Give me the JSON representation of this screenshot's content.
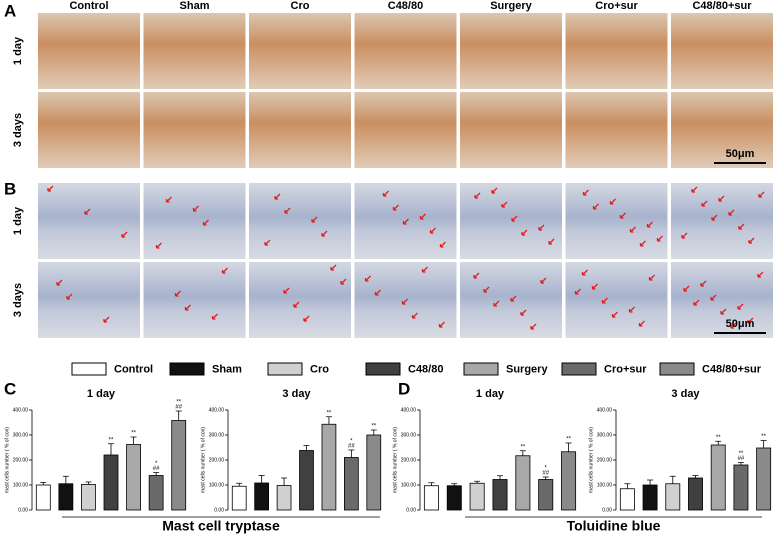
{
  "panels": [
    "A",
    "B",
    "C",
    "D"
  ],
  "columns": [
    "Control",
    "Sham",
    "Cro",
    "C48/80",
    "Surgery",
    "Cro+sur",
    "C48/80+sur"
  ],
  "rows": [
    "1 day",
    "3 days"
  ],
  "scale_bar": "50μm",
  "legend": [
    {
      "name": "Control",
      "color": "#ffffff"
    },
    {
      "name": "Sham",
      "color": "#111111"
    },
    {
      "name": "Cro",
      "color": "#d0d0d0"
    },
    {
      "name": "C48/80",
      "color": "#404040"
    },
    {
      "name": "Surgery",
      "color": "#a8a8a8"
    },
    {
      "name": "Cro+sur",
      "color": "#6a6a6a"
    },
    {
      "name": "C48/80+sur",
      "color": "#8a8a8a"
    }
  ],
  "captions": [
    "Mast cell tryptase",
    "Toluidine blue"
  ],
  "chart_data": [
    {
      "type": "bar",
      "title": "1 day",
      "ylabel": "mast cells number ( % of con)",
      "values": [
        100,
        105,
        102,
        220,
        262,
        138,
        358
      ],
      "errors": [
        10,
        30,
        10,
        45,
        30,
        12,
        38
      ],
      "annotations": [
        [],
        [],
        [],
        [
          "**"
        ],
        [
          "**"
        ],
        [
          "*",
          "##"
        ],
        [
          "**",
          "##"
        ]
      ],
      "ylim": [
        0,
        400
      ],
      "yticks": [
        {
          "value": 0,
          "label": "0.00"
        },
        {
          "value": 100,
          "label": "100.00"
        },
        {
          "value": 200,
          "label": "200.00"
        },
        {
          "value": 300,
          "label": "300.00"
        },
        {
          "value": 400,
          "label": "400.00"
        }
      ]
    },
    {
      "type": "bar",
      "title": "3 day",
      "ylabel": "mast cells number ( % of con)",
      "values": [
        95,
        108,
        98,
        238,
        343,
        210,
        300
      ],
      "errors": [
        12,
        30,
        30,
        20,
        30,
        30,
        20
      ],
      "annotations": [
        [],
        [],
        [],
        [],
        [
          "**"
        ],
        [
          "*",
          "##"
        ],
        [
          "**"
        ]
      ],
      "ylim": [
        0,
        400
      ],
      "yticks": [
        {
          "value": 0,
          "label": "0.00"
        },
        {
          "value": 100,
          "label": "100.00"
        },
        {
          "value": 200,
          "label": "200.00"
        },
        {
          "value": 300,
          "label": "300.00"
        },
        {
          "value": 400,
          "label": "400.00"
        }
      ]
    },
    {
      "type": "bar",
      "title": "1 day",
      "ylabel": "mast cells number ( % of con)",
      "values": [
        97,
        97,
        107,
        122,
        217,
        122,
        233
      ],
      "errors": [
        12,
        8,
        8,
        15,
        20,
        10,
        35
      ],
      "annotations": [
        [],
        [],
        [],
        [],
        [
          "**"
        ],
        [
          "*",
          "##"
        ],
        [
          "**"
        ]
      ],
      "ylim": [
        0,
        400
      ],
      "yticks": [
        {
          "value": 0,
          "label": "0.00"
        },
        {
          "value": 100,
          "label": "100.00"
        },
        {
          "value": 200,
          "label": "200.00"
        },
        {
          "value": 300,
          "label": "300.00"
        },
        {
          "value": 400,
          "label": "400.00"
        }
      ]
    },
    {
      "type": "bar",
      "title": "3 day",
      "ylabel": "mast cells number ( % of con)",
      "values": [
        85,
        100,
        105,
        128,
        260,
        180,
        248
      ],
      "errors": [
        20,
        20,
        30,
        10,
        15,
        10,
        30
      ],
      "annotations": [
        [],
        [],
        [],
        [],
        [
          "**"
        ],
        [
          "**",
          "##"
        ],
        [
          "**"
        ]
      ],
      "ylim": [
        0,
        400
      ],
      "yticks": [
        {
          "value": 0,
          "label": "0.00"
        },
        {
          "value": 100,
          "label": "100.00"
        },
        {
          "value": 200,
          "label": "200.00"
        },
        {
          "value": 300,
          "label": "300.00"
        },
        {
          "value": 400,
          "label": "400.00"
        }
      ]
    }
  ]
}
